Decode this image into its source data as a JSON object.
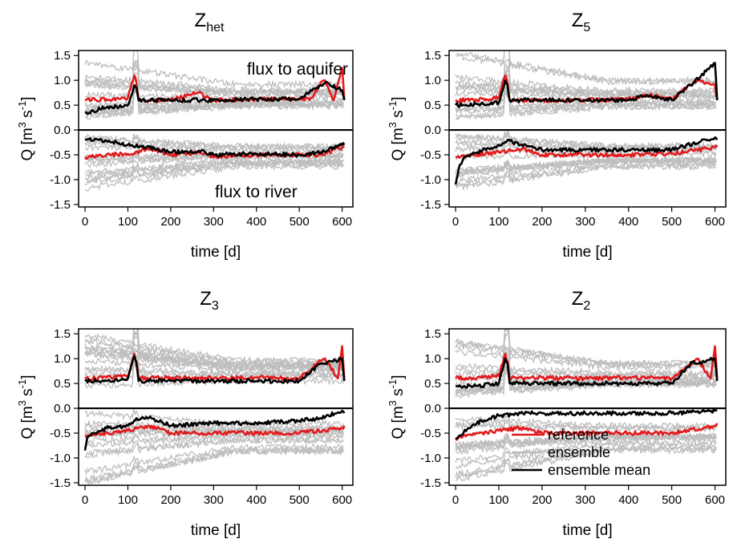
{
  "figure": {
    "legend": {
      "placement": "bottom-right of panel Z2",
      "entries": [
        {
          "label": "reference",
          "color": "#e31a1c"
        },
        {
          "label": "ensemble",
          "color": "#bdbdbd"
        },
        {
          "label": "ensemble mean",
          "color": "#000000"
        }
      ]
    }
  },
  "chart_data": [
    {
      "type": "line",
      "title": {
        "main": "Z",
        "sub": "het"
      },
      "xlabel": "time [d]",
      "ylabel": {
        "main": "Q  [m",
        "sup1": "3",
        "mid": " s",
        "sup2": "-1",
        "end": "]"
      },
      "xlim": [
        -15,
        625
      ],
      "ylim": [
        -1.55,
        1.6
      ],
      "xticks": [
        "0",
        "100",
        "200",
        "300",
        "400",
        "500",
        "600"
      ],
      "yticks": [
        "1.5",
        "1.0",
        "0.5",
        "0.0",
        "-0.5",
        "-1.0",
        "-1.5"
      ],
      "annotations": [
        "flux to aquifer",
        "flux to river"
      ],
      "series": [
        {
          "name": "reference",
          "color": "#e31a1c",
          "pos": {
            "x": [
              0,
              50,
              100,
              115,
              120,
              125,
              150,
              200,
              265,
              300,
              400,
              450,
              500,
              530,
              550,
              560,
              580,
              600,
              605
            ],
            "y": [
              0.6,
              0.62,
              0.65,
              1.1,
              0.95,
              0.6,
              0.6,
              0.6,
              0.75,
              0.6,
              0.62,
              0.62,
              0.62,
              0.65,
              0.95,
              1.0,
              0.6,
              1.25,
              0.6
            ]
          },
          "neg": {
            "x": [
              0,
              50,
              100,
              155,
              200,
              265,
              300,
              400,
              500,
              550,
              600,
              605
            ],
            "y": [
              -0.55,
              -0.5,
              -0.48,
              -0.38,
              -0.5,
              -0.45,
              -0.55,
              -0.5,
              -0.5,
              -0.5,
              -0.35,
              -0.35
            ]
          }
        },
        {
          "name": "ensemble mean",
          "color": "#000000",
          "pos": {
            "x": [
              0,
              50,
              100,
              115,
              120,
              125,
              200,
              300,
              400,
              500,
              550,
              560,
              600,
              605
            ],
            "y": [
              0.35,
              0.45,
              0.5,
              0.9,
              0.85,
              0.6,
              0.6,
              0.6,
              0.62,
              0.62,
              0.9,
              0.95,
              0.8,
              0.6
            ]
          },
          "neg": {
            "x": [
              0,
              50,
              100,
              150,
              200,
              265,
              300,
              400,
              500,
              550,
              600,
              605
            ],
            "y": [
              -0.2,
              -0.22,
              -0.3,
              -0.35,
              -0.45,
              -0.42,
              -0.5,
              -0.48,
              -0.5,
              -0.45,
              -0.3,
              -0.3
            ]
          }
        }
      ],
      "ensemble": {
        "pos": [
          0.15,
          1.4
        ],
        "neg": [
          -1.2,
          -0.15
        ],
        "color": "#bdbdbd"
      }
    },
    {
      "type": "line",
      "title": {
        "main": "Z",
        "sub": "5"
      },
      "xlabel": "time [d]",
      "ylabel": {
        "main": "Q  [m",
        "sup1": "3",
        "mid": " s",
        "sup2": "-1",
        "end": "]"
      },
      "xlim": [
        -15,
        625
      ],
      "ylim": [
        -1.55,
        1.6
      ],
      "xticks": [
        "0",
        "100",
        "200",
        "300",
        "400",
        "500",
        "600"
      ],
      "yticks": [
        "1.5",
        "1.0",
        "0.5",
        "0.0",
        "-0.5",
        "-1.0",
        "-1.5"
      ],
      "annotations": [],
      "series": [
        {
          "name": "reference",
          "color": "#e31a1c",
          "pos": {
            "x": [
              0,
              50,
              100,
              115,
              120,
              125,
              200,
              300,
              400,
              450,
              500,
              550,
              560,
              600,
              605
            ],
            "y": [
              0.6,
              0.6,
              0.65,
              1.1,
              0.95,
              0.6,
              0.6,
              0.6,
              0.62,
              0.7,
              0.62,
              0.95,
              1.0,
              0.9,
              0.6
            ]
          },
          "neg": {
            "x": [
              0,
              50,
              100,
              155,
              200,
              300,
              400,
              500,
              600,
              605
            ],
            "y": [
              -0.55,
              -0.5,
              -0.45,
              -0.38,
              -0.5,
              -0.5,
              -0.5,
              -0.48,
              -0.35,
              -0.35
            ]
          }
        },
        {
          "name": "ensemble mean",
          "color": "#000000",
          "pos": {
            "x": [
              0,
              50,
              100,
              115,
              120,
              125,
              200,
              300,
              400,
              450,
              500,
              550,
              600,
              605
            ],
            "y": [
              0.5,
              0.52,
              0.55,
              1.0,
              0.9,
              0.6,
              0.6,
              0.6,
              0.6,
              0.7,
              0.6,
              0.95,
              1.35,
              0.6
            ]
          },
          "neg": {
            "x": [
              0,
              5,
              10,
              20,
              50,
              100,
              120,
              150,
              200,
              300,
              400,
              500,
              600,
              605
            ],
            "y": [
              -1.1,
              -0.9,
              -0.7,
              -0.55,
              -0.45,
              -0.3,
              -0.2,
              -0.3,
              -0.4,
              -0.4,
              -0.4,
              -0.4,
              -0.15,
              -0.2
            ]
          }
        }
      ],
      "ensemble": {
        "pos": [
          0.1,
          1.6
        ],
        "neg": [
          -1.55,
          -0.1
        ],
        "color": "#bdbdbd"
      }
    },
    {
      "type": "line",
      "title": {
        "main": "Z",
        "sub": "3"
      },
      "xlabel": "time [d]",
      "ylabel": {
        "main": "Q  [m",
        "sup1": "3",
        "mid": " s",
        "sup2": "-1",
        "end": "]"
      },
      "xlim": [
        -15,
        625
      ],
      "ylim": [
        -1.55,
        1.6
      ],
      "xticks": [
        "0",
        "100",
        "200",
        "300",
        "400",
        "500",
        "600"
      ],
      "yticks": [
        "1.5",
        "1.0",
        "0.5",
        "0.0",
        "-0.5",
        "-1.0",
        "-1.5"
      ],
      "annotations": [],
      "series": [
        {
          "name": "reference",
          "color": "#e31a1c",
          "pos": {
            "x": [
              0,
              50,
              100,
              115,
              120,
              125,
              200,
              300,
              400,
              500,
              550,
              560,
              590,
              600,
              605
            ],
            "y": [
              0.6,
              0.62,
              0.65,
              1.1,
              0.95,
              0.6,
              0.62,
              0.6,
              0.62,
              0.6,
              0.95,
              1.0,
              0.6,
              1.25,
              0.6
            ]
          },
          "neg": {
            "x": [
              0,
              50,
              100,
              150,
              200,
              300,
              400,
              500,
              600,
              605
            ],
            "y": [
              -0.55,
              -0.5,
              -0.45,
              -0.35,
              -0.5,
              -0.5,
              -0.5,
              -0.5,
              -0.4,
              -0.35
            ]
          }
        },
        {
          "name": "ensemble mean",
          "color": "#000000",
          "pos": {
            "x": [
              0,
              50,
              100,
              115,
              120,
              125,
              200,
              300,
              400,
              500,
              550,
              560,
              600,
              605
            ],
            "y": [
              0.55,
              0.55,
              0.6,
              1.05,
              0.9,
              0.55,
              0.55,
              0.55,
              0.55,
              0.55,
              0.9,
              0.9,
              1.0,
              0.55
            ]
          },
          "neg": {
            "x": [
              0,
              5,
              20,
              50,
              100,
              120,
              155,
              200,
              300,
              400,
              500,
              550,
              600,
              605
            ],
            "y": [
              -0.85,
              -0.6,
              -0.5,
              -0.4,
              -0.35,
              -0.2,
              -0.2,
              -0.35,
              -0.3,
              -0.3,
              -0.25,
              -0.2,
              -0.05,
              -0.1
            ]
          }
        }
      ],
      "ensemble": {
        "pos": [
          0.2,
          1.6
        ],
        "neg": [
          -1.55,
          -0.05
        ],
        "color": "#bdbdbd"
      }
    },
    {
      "type": "line",
      "title": {
        "main": "Z",
        "sub": "2"
      },
      "xlabel": "time [d]",
      "ylabel": {
        "main": "Q  [m",
        "sup1": "3",
        "mid": " s",
        "sup2": "-1",
        "end": "]"
      },
      "xlim": [
        -15,
        625
      ],
      "ylim": [
        -1.55,
        1.6
      ],
      "xticks": [
        "0",
        "100",
        "200",
        "300",
        "400",
        "500",
        "600"
      ],
      "yticks": [
        "1.5",
        "1.0",
        "0.5",
        "0.0",
        "-0.5",
        "-1.0",
        "-1.5"
      ],
      "annotations": [],
      "series": [
        {
          "name": "reference",
          "color": "#e31a1c",
          "pos": {
            "x": [
              0,
              50,
              100,
              115,
              120,
              125,
              200,
              300,
              400,
              500,
              550,
              560,
              590,
              600,
              605
            ],
            "y": [
              0.6,
              0.62,
              0.65,
              1.1,
              0.95,
              0.6,
              0.62,
              0.6,
              0.62,
              0.6,
              0.95,
              1.0,
              0.6,
              1.25,
              0.6
            ]
          },
          "neg": {
            "x": [
              0,
              50,
              100,
              150,
              200,
              300,
              400,
              500,
              600,
              605
            ],
            "y": [
              -0.6,
              -0.5,
              -0.45,
              -0.4,
              -0.5,
              -0.5,
              -0.5,
              -0.5,
              -0.35,
              -0.3
            ]
          }
        },
        {
          "name": "ensemble mean",
          "color": "#000000",
          "pos": {
            "x": [
              0,
              50,
              100,
              115,
              120,
              125,
              200,
              300,
              400,
              500,
              550,
              560,
              600,
              605
            ],
            "y": [
              0.45,
              0.45,
              0.5,
              1.0,
              0.9,
              0.5,
              0.5,
              0.5,
              0.5,
              0.5,
              0.95,
              0.9,
              1.0,
              0.55
            ]
          },
          "neg": {
            "x": [
              0,
              30,
              60,
              100,
              150,
              200,
              300,
              400,
              500,
              600,
              605
            ],
            "y": [
              -0.6,
              -0.4,
              -0.25,
              -0.15,
              -0.1,
              -0.1,
              -0.1,
              -0.1,
              -0.1,
              -0.05,
              -0.05
            ]
          }
        }
      ],
      "ensemble": {
        "pos": [
          0.15,
          1.5
        ],
        "neg": [
          -1.55,
          0.0
        ],
        "color": "#bdbdbd"
      }
    }
  ]
}
